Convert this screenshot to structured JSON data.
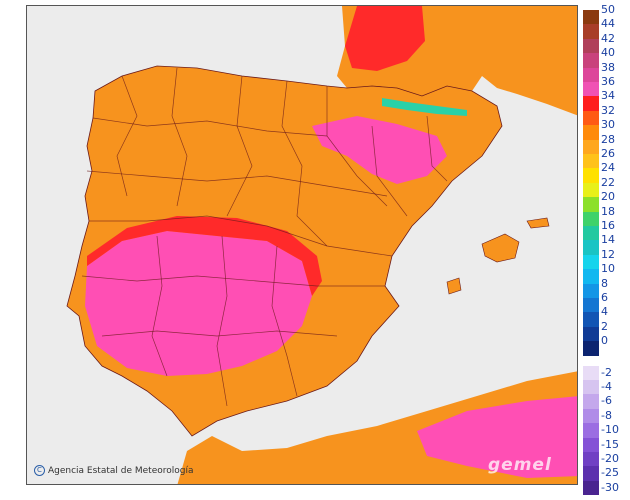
{
  "map": {
    "region": "Iberian Peninsula temperature forecast map",
    "colors": {
      "sea": "#ececec",
      "land_hot": "#f7931e",
      "land_very_hot": "#ff2a2a",
      "land_extreme": "#ff4fb4",
      "land_warm": "#ffc61a",
      "land_mild": "#ffe100",
      "mountain_cool": "#2ad1a8",
      "border": "#6b1a1a"
    }
  },
  "legend": {
    "positive": [
      {
        "label": "50",
        "color": "#8b3a0f"
      },
      {
        "label": "44",
        "color": "#a83e28"
      },
      {
        "label": "42",
        "color": "#b0405a"
      },
      {
        "label": "40",
        "color": "#c9427c"
      },
      {
        "label": "38",
        "color": "#dd469a"
      },
      {
        "label": "36",
        "color": "#f052b4"
      },
      {
        "label": "34",
        "color": "#ff1e1e"
      },
      {
        "label": "32",
        "color": "#ff5a14"
      },
      {
        "label": "30",
        "color": "#ff8a0a"
      },
      {
        "label": "28",
        "color": "#ffa71e"
      },
      {
        "label": "26",
        "color": "#ffc21a"
      },
      {
        "label": "24",
        "color": "#ffe100"
      },
      {
        "label": "22",
        "color": "#e8f01a"
      },
      {
        "label": "20",
        "color": "#8ce02a"
      },
      {
        "label": "18",
        "color": "#3fd26a"
      },
      {
        "label": "16",
        "color": "#22c9a0"
      },
      {
        "label": "14",
        "color": "#1ac4c4"
      },
      {
        "label": "12",
        "color": "#16d4ec"
      },
      {
        "label": "10",
        "color": "#12b8f0"
      },
      {
        "label": "8",
        "color": "#1496e6"
      },
      {
        "label": "6",
        "color": "#1476d2"
      },
      {
        "label": "4",
        "color": "#1255b4"
      },
      {
        "label": "2",
        "color": "#103b96"
      },
      {
        "label": "0",
        "color": "#0c2470"
      }
    ],
    "negative": [
      {
        "label": "-2",
        "color": "#e8dcf6"
      },
      {
        "label": "-4",
        "color": "#d6c4f0"
      },
      {
        "label": "-6",
        "color": "#c4a8ec"
      },
      {
        "label": "-8",
        "color": "#b08ce8"
      },
      {
        "label": "-10",
        "color": "#9b6ee2"
      },
      {
        "label": "-15",
        "color": "#8452d6"
      },
      {
        "label": "-20",
        "color": "#7040c4"
      },
      {
        "label": "-25",
        "color": "#5c30ae"
      },
      {
        "label": "-30",
        "color": "#4a2490"
      }
    ]
  },
  "attribution": {
    "text": "Agencia Estatal de Meteorología",
    "copyright_symbol": "C"
  },
  "model_logo": "gemel"
}
